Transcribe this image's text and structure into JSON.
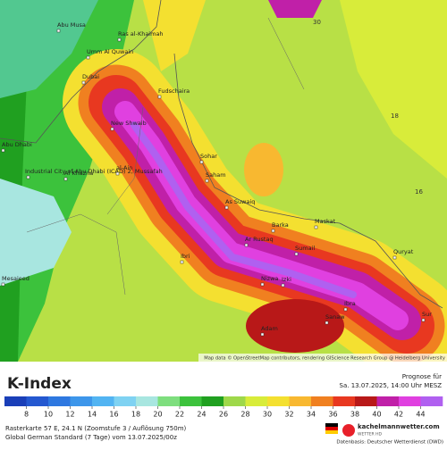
{
  "map": {
    "places": [
      "Abu Musa",
      "Ras al-Khaimah",
      "Umm Al Quwain",
      "Dubai",
      "Fudschaira",
      "New Shwaib",
      "Abu Dhabi",
      "Industrial City of Abu Dhabi (ICAD) 2, Mussafah",
      "Al Khazna",
      "al-Ain",
      "Sohar",
      "Saham",
      "As Suwaiq",
      "Barka",
      "Maskat",
      "Ar Rustaq",
      "Sumail",
      "Quryat",
      "Ibri",
      "Nizwa",
      "Izki",
      "Ibra",
      "Sanaw",
      "Adam",
      "Sur",
      "Mesaieed"
    ],
    "contour_labels": [
      30,
      18,
      16
    ],
    "attribution": "Map data © OpenStreetMap contributors, rendering GIScience Research Group @ Heidelberg University"
  },
  "legend": {
    "title": "K-Index",
    "ticks": [
      8,
      10,
      12,
      14,
      16,
      18,
      20,
      22,
      24,
      26,
      28,
      30,
      32,
      34,
      36,
      38,
      40,
      42,
      44
    ],
    "colors": [
      "#1a3fb8",
      "#2458d0",
      "#2e78e0",
      "#3d96ea",
      "#52b4f2",
      "#7fd2f2",
      "#a8e6e0",
      "#7ede7e",
      "#3cc23c",
      "#20a020",
      "#9ed84a",
      "#d8ec3a",
      "#f4e030",
      "#f8b830",
      "#f08020",
      "#e83820",
      "#b81818",
      "#c020a8",
      "#e040e0",
      "#b060f0"
    ]
  },
  "header": {
    "forecast_label": "Prognose für",
    "forecast_time": "Sa. 13.07.2025, 14:00 Uhr MESZ"
  },
  "footer": {
    "line1": "Rasterkarte 57 E, 24.1 N (Zoomstufe 3 / Auflösung 750m)",
    "line2": "Global German Standard (7 Tage) vom 13.07.2025/00z",
    "brand": "kachelmannwetter.com",
    "brand_sub": "WETTER HD",
    "source": "Datenbasis: Deutscher Wetterdienst (DWD)"
  }
}
